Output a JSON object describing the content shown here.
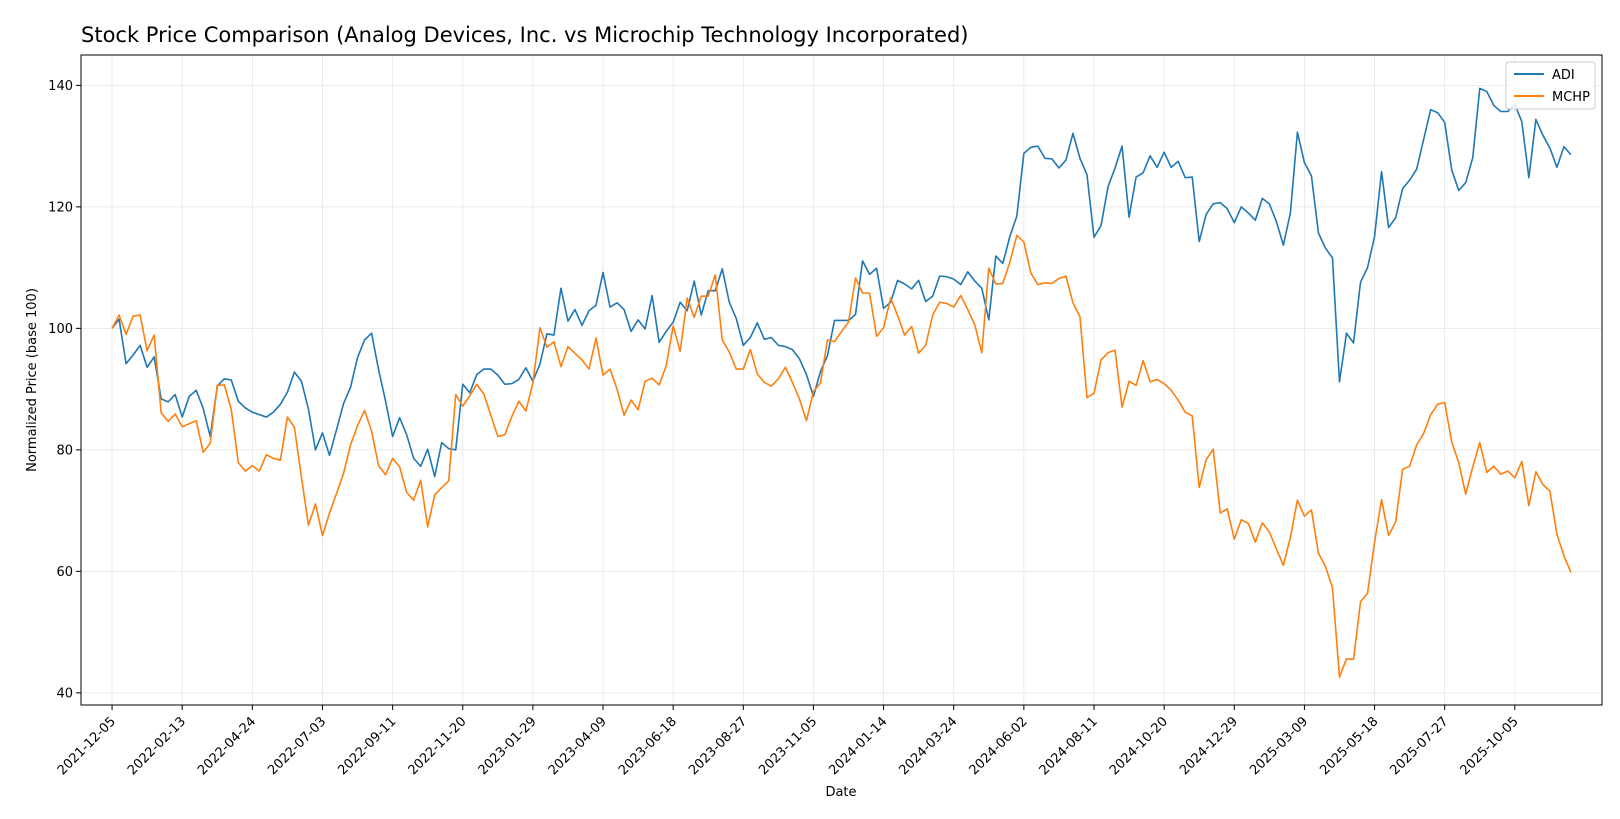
{
  "chart_data": {
    "type": "line",
    "title": "Stock Price Comparison (Analog Devices, Inc. vs Microchip Technology Incorporated)",
    "xlabel": "Date",
    "ylabel": "Normalized Price (base 100)",
    "xlim": [
      "2021-11-04",
      "2025-12-31"
    ],
    "ylim": [
      38,
      145
    ],
    "grid": true,
    "legend_position": "top-right",
    "x_tick_labels": [
      "2021-12-05",
      "2022-02-13",
      "2022-04-24",
      "2022-07-03",
      "2022-09-11",
      "2022-11-20",
      "2023-01-29",
      "2023-04-09",
      "2023-06-18",
      "2023-08-27",
      "2023-11-05",
      "2024-01-14",
      "2024-03-24",
      "2024-06-02",
      "2024-08-11",
      "2024-10-20",
      "2024-12-29",
      "2025-03-09",
      "2025-05-18",
      "2025-07-27",
      "2025-10-05"
    ],
    "y_ticks": [
      40,
      60,
      80,
      100,
      120,
      140
    ],
    "start_date": "2021-12-05",
    "step_days": 7,
    "series": [
      {
        "name": "ADI",
        "color": "#1f77b4",
        "values": [
          100.0,
          101.5,
          94.2,
          95.6,
          97.2,
          93.6,
          95.3,
          88.4,
          87.9,
          89.1,
          85.4,
          88.8,
          89.8,
          86.8,
          82.2,
          90.5,
          91.7,
          91.5,
          88.0,
          86.9,
          86.2,
          85.8,
          85.4,
          86.2,
          87.5,
          89.5,
          92.8,
          91.3,
          86.7,
          80.0,
          82.8,
          79.1,
          83.3,
          87.6,
          90.3,
          95.2,
          98.1,
          99.2,
          93.2,
          88.0,
          82.2,
          85.3,
          82.5,
          78.6,
          77.3,
          80.1,
          75.6,
          81.2,
          80.2,
          80.0,
          90.8,
          89.4,
          92.4,
          93.3,
          93.3,
          92.3,
          90.8,
          90.9,
          91.6,
          93.5,
          91.3,
          94.1,
          99.1,
          98.9,
          106.6,
          101.2,
          103.1,
          100.5,
          102.9,
          103.8,
          109.2,
          103.5,
          104.2,
          103.1,
          99.5,
          101.4,
          99.9,
          105.4,
          97.7,
          99.5,
          101.0,
          104.3,
          102.9,
          107.8,
          102.2,
          106.2,
          106.2,
          109.8,
          104.3,
          101.6,
          97.2,
          98.5,
          100.9,
          98.2,
          98.5,
          97.2,
          97.0,
          96.5,
          95.0,
          92.4,
          88.8,
          92.9,
          95.5,
          101.3,
          101.3,
          101.3,
          102.3,
          111.1,
          108.9,
          109.9,
          103.3,
          104.3,
          107.9,
          107.3,
          106.5,
          107.9,
          104.4,
          105.3,
          108.6,
          108.5,
          108.1,
          107.2,
          109.3,
          107.8,
          106.6,
          101.4,
          111.9,
          110.7,
          115.1,
          118.5,
          128.8,
          129.8,
          130.0,
          128.0,
          127.9,
          126.4,
          127.7,
          132.1,
          128.0,
          125.3,
          115.0,
          116.9,
          123.3,
          126.4,
          130.0,
          118.3,
          124.9,
          125.6,
          128.4,
          126.5,
          129.0,
          126.5,
          127.5,
          124.8,
          124.9,
          114.3,
          118.8,
          120.5,
          120.7,
          119.7,
          117.4,
          120.0,
          119.0,
          117.8,
          121.4,
          120.5,
          117.6,
          113.7,
          119.0,
          132.3,
          127.3,
          125.1,
          115.7,
          113.2,
          111.6,
          91.2,
          99.2,
          97.6,
          107.6,
          110.0,
          115.1,
          125.8,
          116.6,
          118.2,
          123.0,
          124.4,
          126.2,
          131.1,
          136.0,
          135.5,
          133.9,
          126.1,
          122.7,
          124.0,
          128.1,
          139.5,
          139.0,
          136.7,
          135.7,
          135.7,
          136.9,
          134.0,
          124.8,
          134.4,
          131.8,
          129.7,
          126.5,
          129.9,
          128.6
        ]
      },
      {
        "name": "MCHP",
        "color": "#ff7f0e",
        "values": [
          100.0,
          102.2,
          99.0,
          102.0,
          102.2,
          96.3,
          98.9,
          86.1,
          84.7,
          85.9,
          83.8,
          84.3,
          84.8,
          79.6,
          81.1,
          90.6,
          90.7,
          86.6,
          77.9,
          76.5,
          77.4,
          76.5,
          79.2,
          78.6,
          78.3,
          85.4,
          83.7,
          75.5,
          67.6,
          71.1,
          65.9,
          69.6,
          72.8,
          76.1,
          80.8,
          84.0,
          86.5,
          83.1,
          77.4,
          75.9,
          78.6,
          77.2,
          73.0,
          71.7,
          75.0,
          67.3,
          72.6,
          73.8,
          74.9,
          89.1,
          87.2,
          88.9,
          90.8,
          89.2,
          85.7,
          82.2,
          82.5,
          85.5,
          88.0,
          86.4,
          91.0,
          100.1,
          96.9,
          97.8,
          93.7,
          97.0,
          95.9,
          94.8,
          93.3,
          98.4,
          92.3,
          93.3,
          90.0,
          85.7,
          88.2,
          86.6,
          91.3,
          91.8,
          90.7,
          93.8,
          100.4,
          96.2,
          105.0,
          101.8,
          105.3,
          105.3,
          108.8,
          98.1,
          96.1,
          93.3,
          93.3,
          96.5,
          92.5,
          91.1,
          90.5,
          91.7,
          93.6,
          91.1,
          88.4,
          84.8,
          89.6,
          91.0,
          98.1,
          97.8,
          99.5,
          101.0,
          108.3,
          105.8,
          105.8,
          98.7,
          100.1,
          105.0,
          102.1,
          98.9,
          100.3,
          95.9,
          97.2,
          102.2,
          104.3,
          104.1,
          103.5,
          105.4,
          103.1,
          100.6,
          96.0,
          109.9,
          107.3,
          107.4,
          110.9,
          115.3,
          114.2,
          109.1,
          107.2,
          107.5,
          107.4,
          108.2,
          108.6,
          104.2,
          101.9,
          88.6,
          89.3,
          94.8,
          96.0,
          96.4,
          87.0,
          91.3,
          90.6,
          94.7,
          91.2,
          91.6,
          90.9,
          89.8,
          88.2,
          86.2,
          85.6,
          73.8,
          78.4,
          80.1,
          69.6,
          70.3,
          65.3,
          68.5,
          67.9,
          64.8,
          68.0,
          66.5,
          63.7,
          61.0,
          65.6,
          71.7,
          69.1,
          70.1,
          63.0,
          60.8,
          57.3,
          42.6,
          45.6,
          45.5,
          55.0,
          56.4,
          64.8,
          71.8,
          65.9,
          68.1,
          76.8,
          77.3,
          80.8,
          82.7,
          85.8,
          87.5,
          87.8,
          81.3,
          77.9,
          72.7,
          77.2,
          81.2,
          76.3,
          77.3,
          76.0,
          76.5,
          75.4,
          78.1,
          70.8,
          76.4,
          74.3,
          73.2,
          66.1,
          62.6,
          59.8
        ]
      }
    ]
  }
}
